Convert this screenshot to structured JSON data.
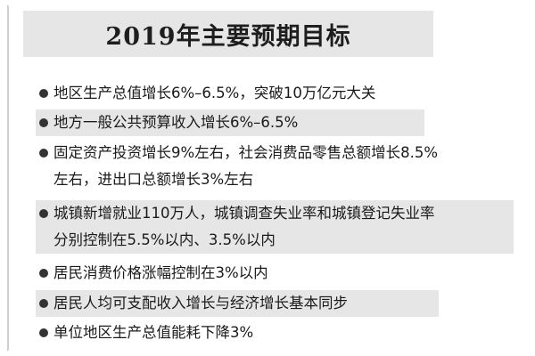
{
  "header": {
    "title": "2019年主要预期目标"
  },
  "items": [
    {
      "lines": [
        "地区生产总值增长6%–6.5%，突破10万亿元大关"
      ]
    },
    {
      "lines": [
        "地方一般公共预算收入增长6%–6.5%"
      ]
    },
    {
      "lines": [
        "固定资产投资增长9%左右，社会消费品零售总额增长8.5%",
        "左右，进出口总额增长3%左右"
      ]
    },
    {
      "lines": [
        "城镇新增就业110万人，城镇调查失业率和城镇登记失业率",
        "分别控制在5.5%以内、3.5%以内"
      ]
    },
    {
      "lines": [
        "居民消费价格涨幅控制在3%以内"
      ]
    },
    {
      "lines": [
        "居民人均可支配收入增长与经济增长基本同步"
      ]
    },
    {
      "lines": [
        "单位地区生产总值能耗下降3%"
      ]
    }
  ],
  "colors": {
    "band": "#e6e6e6",
    "text": "#1a1a1a",
    "bullet": "#333333"
  }
}
